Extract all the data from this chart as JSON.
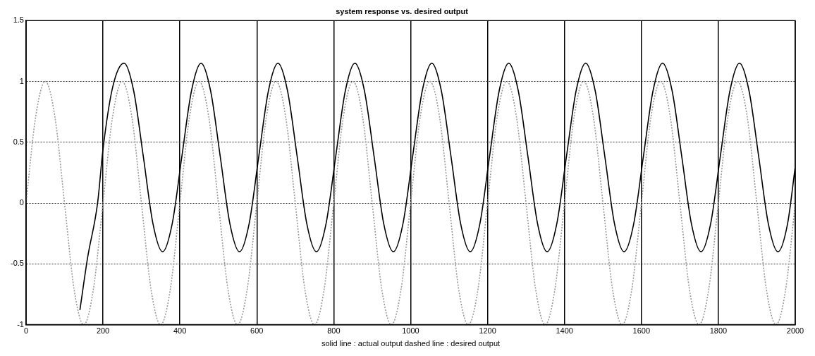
{
  "chart_data": {
    "type": "line",
    "title": "system response vs. desired output",
    "xlabel": "solid line : actual output dashed line : desired output",
    "xlim": [
      0,
      2000
    ],
    "xticks": [
      0,
      200,
      400,
      600,
      800,
      1000,
      1200,
      1400,
      1600,
      1800,
      2000
    ],
    "ylim": [
      -1,
      1.5
    ],
    "yticks": [
      -1,
      -0.5,
      0,
      0.5,
      1,
      1.5
    ],
    "grid": true,
    "legend": false,
    "series": [
      {
        "color": "#000000",
        "line_style": "solid",
        "x": [
          140,
          160,
          186,
          200,
          225,
          255,
          280,
          305,
          330,
          355,
          380,
          405,
          430,
          455,
          480,
          505,
          530,
          555,
          580,
          605,
          630,
          655,
          680,
          705,
          730,
          755,
          780,
          805,
          830,
          855,
          880,
          905,
          930,
          955,
          980,
          1005,
          1030,
          1055,
          1080,
          1105,
          1130,
          1155,
          1180,
          1205,
          1230,
          1255,
          1280,
          1305,
          1330,
          1355,
          1380,
          1405,
          1430,
          1455,
          1480,
          1505,
          1530,
          1555,
          1580,
          1605,
          1630,
          1655,
          1680,
          1705,
          1730,
          1755,
          1780,
          1805,
          1830,
          1855,
          1880,
          1905,
          1930,
          1955,
          1980,
          2000
        ],
        "values": [
          -0.88,
          -0.45,
          0,
          0.44,
          0.95,
          1.15,
          0.92,
          0.38,
          -0.17,
          -0.4,
          -0.17,
          0.38,
          0.92,
          1.15,
          0.92,
          0.38,
          -0.17,
          -0.4,
          -0.17,
          0.38,
          0.92,
          1.15,
          0.92,
          0.38,
          -0.17,
          -0.4,
          -0.17,
          0.38,
          0.92,
          1.15,
          0.92,
          0.38,
          -0.17,
          -0.4,
          -0.17,
          0.38,
          0.92,
          1.15,
          0.92,
          0.38,
          -0.17,
          -0.4,
          -0.17,
          0.38,
          0.92,
          1.15,
          0.92,
          0.38,
          -0.17,
          -0.4,
          -0.17,
          0.38,
          0.92,
          1.15,
          0.92,
          0.38,
          -0.17,
          -0.4,
          -0.17,
          0.38,
          0.92,
          1.15,
          0.92,
          0.38,
          -0.17,
          -0.4,
          -0.17,
          0.38,
          0.92,
          1.15,
          0.92,
          0.38,
          -0.17,
          -0.4,
          -0.17,
          0.3
        ]
      },
      {
        "color": "#999999",
        "line_style": "dotted",
        "x": [
          0,
          25,
          50,
          75,
          100,
          125,
          150,
          175,
          200,
          225,
          250,
          275,
          300,
          325,
          350,
          375,
          400,
          425,
          450,
          475,
          500,
          525,
          550,
          575,
          600,
          625,
          650,
          675,
          700,
          725,
          750,
          775,
          800,
          825,
          850,
          875,
          900,
          925,
          950,
          975,
          1000,
          1025,
          1050,
          1075,
          1100,
          1125,
          1150,
          1175,
          1200,
          1225,
          1250,
          1275,
          1300,
          1325,
          1350,
          1375,
          1400,
          1425,
          1450,
          1475,
          1500,
          1525,
          1550,
          1575,
          1600,
          1625,
          1650,
          1675,
          1700,
          1725,
          1750,
          1775,
          1800,
          1825,
          1850,
          1875,
          1900,
          1925,
          1950,
          1975,
          2000
        ],
        "values": [
          0,
          0.71,
          1,
          0.71,
          0,
          -0.71,
          -1,
          -0.71,
          0,
          0.71,
          1,
          0.71,
          0,
          -0.71,
          -1,
          -0.71,
          0,
          0.71,
          1,
          0.71,
          0,
          -0.71,
          -1,
          -0.71,
          0,
          0.71,
          1,
          0.71,
          0,
          -0.71,
          -1,
          -0.71,
          0,
          0.71,
          1,
          0.71,
          0,
          -0.71,
          -1,
          -0.71,
          0,
          0.71,
          1,
          0.71,
          0,
          -0.71,
          -1,
          -0.71,
          0,
          0.71,
          1,
          0.71,
          0,
          -0.71,
          -1,
          -0.71,
          0,
          0.71,
          1,
          0.71,
          0,
          -0.71,
          -1,
          -0.71,
          0,
          0.71,
          1,
          0.71,
          0,
          -0.71,
          -1,
          -0.71,
          0,
          0.71,
          1,
          0.71,
          0,
          -0.71,
          -1,
          -0.71,
          0
        ]
      }
    ]
  }
}
